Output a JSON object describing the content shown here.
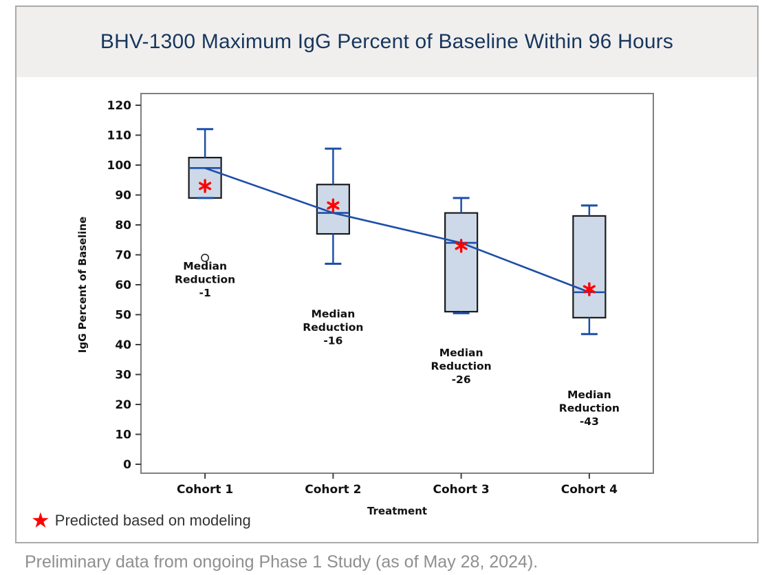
{
  "footnote": "Preliminary data from ongoing Phase 1 Study (as of May 28, 2024).",
  "colors": {
    "title_navy": "#17365d",
    "band_gray": "#f0efee",
    "panel_border": "#a9a9a9",
    "frame_gray": "#7f7f7f",
    "tick_color": "#404040",
    "text_black": "#111111",
    "box_fill": "#cdd9e8",
    "box_border": "#1a1a1a",
    "line_blue": "#1d4fa8",
    "star_red": "#ff0000",
    "outlier_stroke": "#2b2b2b",
    "legend_text": "#333333",
    "footnote_gray": "#8f8f8f"
  },
  "chart_data": {
    "type": "boxplot",
    "title": "BHV-1300 Maximum IgG Percent of Baseline Within 96 Hours",
    "xlabel": "Treatment",
    "ylabel": "IgG Percent of Baseline",
    "ylim": [
      0,
      120
    ],
    "ytick_step": 10,
    "grid": false,
    "legend_position": "bottom-left",
    "categories": [
      "Cohort 1",
      "Cohort 2",
      "Cohort 3",
      "Cohort 4"
    ],
    "boxes": [
      {
        "category": "Cohort 1",
        "whisker_low": 89,
        "q1": 89,
        "median": 99,
        "q3": 102.5,
        "whisker_high": 112,
        "outliers": [
          69
        ],
        "predicted": 93,
        "median_reduction": -1,
        "annotation": {
          "lines": [
            "Median",
            "Reduction",
            "-1"
          ],
          "y": 62
        }
      },
      {
        "category": "Cohort 2",
        "whisker_low": 67,
        "q1": 77,
        "median": 84,
        "q3": 93.5,
        "whisker_high": 105.5,
        "outliers": [],
        "predicted": 86.5,
        "median_reduction": -16,
        "annotation": {
          "lines": [
            "Median",
            "Reduction",
            "-16"
          ],
          "y": 46
        }
      },
      {
        "category": "Cohort 3",
        "whisker_low": 50.5,
        "q1": 51,
        "median": 74,
        "q3": 84,
        "whisker_high": 89,
        "outliers": [],
        "predicted": 73,
        "median_reduction": -26,
        "annotation": {
          "lines": [
            "Median",
            "Reduction",
            "-26"
          ],
          "y": 33
        }
      },
      {
        "category": "Cohort 4",
        "whisker_low": 43.5,
        "q1": 49,
        "median": 57.5,
        "q3": 83,
        "whisker_high": 86.5,
        "outliers": [],
        "predicted": 58.5,
        "median_reduction": -43,
        "annotation": {
          "lines": [
            "Median",
            "Reduction",
            "-43"
          ],
          "y": 19
        }
      }
    ],
    "median_trend_line": [
      99,
      84,
      74,
      57.5
    ],
    "legend": {
      "marker": "red-star",
      "marker_glyph": "★",
      "label": "Predicted based on modeling"
    }
  }
}
